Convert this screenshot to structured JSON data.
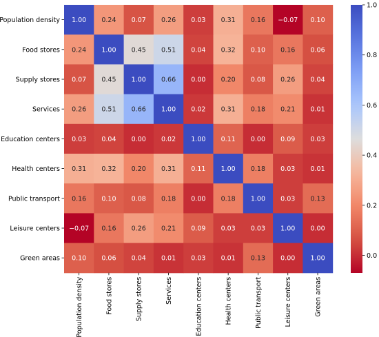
{
  "chart_data": {
    "type": "heatmap",
    "title": "",
    "variables": [
      "Population density",
      "Food stores",
      "Supply stores",
      "Services",
      "Education centers",
      "Health centers",
      "Public transport",
      "Leisure centers",
      "Green areas"
    ],
    "matrix": [
      [
        1.0,
        0.24,
        0.07,
        0.26,
        0.03,
        0.31,
        0.16,
        -0.07,
        0.1
      ],
      [
        0.24,
        1.0,
        0.45,
        0.51,
        0.04,
        0.32,
        0.1,
        0.16,
        0.06
      ],
      [
        0.07,
        0.45,
        1.0,
        0.66,
        0.0,
        0.2,
        0.08,
        0.26,
        0.04
      ],
      [
        0.26,
        0.51,
        0.66,
        1.0,
        0.02,
        0.31,
        0.18,
        0.21,
        0.01
      ],
      [
        0.03,
        0.04,
        0.0,
        0.02,
        1.0,
        0.11,
        0.0,
        0.09,
        0.03
      ],
      [
        0.31,
        0.32,
        0.2,
        0.31,
        0.11,
        1.0,
        0.18,
        0.03,
        0.01
      ],
      [
        0.16,
        0.1,
        0.08,
        0.18,
        0.0,
        0.18,
        1.0,
        0.03,
        0.13
      ],
      [
        -0.07,
        0.16,
        0.26,
        0.21,
        0.09,
        0.03,
        0.03,
        1.0,
        0.0
      ],
      [
        0.1,
        0.06,
        0.04,
        0.01,
        0.03,
        0.01,
        0.13,
        0.0,
        1.0
      ]
    ],
    "colormap": "coolwarm_r",
    "vmin": -0.07,
    "vmax": 1.0,
    "colorbar_ticks": [
      0.0,
      0.2,
      0.4,
      0.6,
      0.8,
      1.0
    ],
    "colorbar_tick_labels": [
      "0.0",
      "0.2",
      "0.4",
      "0.6",
      "0.8",
      "1.0"
    ],
    "legend_position": "right"
  }
}
